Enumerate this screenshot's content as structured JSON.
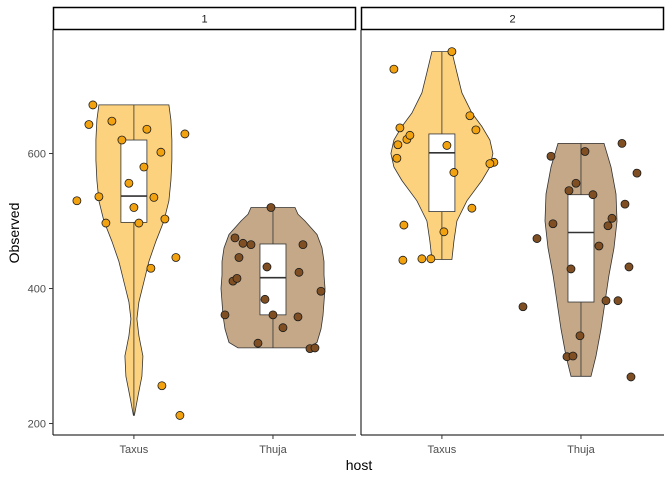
{
  "chart_data": {
    "type": "violin",
    "xlabel": "host",
    "ylabel": "Observed",
    "ylim": [
      183,
      783
    ],
    "yticks": [
      200,
      400,
      600
    ],
    "categories": [
      "Taxus",
      "Thuja"
    ],
    "colors": {
      "Taxus": {
        "fill": "#fdd27e",
        "point": "#f2a20f"
      },
      "Thuja": {
        "fill": "#c4a888",
        "point": "#7f4f23"
      }
    },
    "grid": false,
    "panels": [
      {
        "label": "1",
        "groups": [
          {
            "host": "Taxus",
            "box": {
              "q1": 498,
              "median": 537,
              "q3": 620,
              "whisker_low": 212,
              "whisker_high": 672
            },
            "violin": [
              [
                212,
                0.5
              ],
              [
                240,
                4
              ],
              [
                270,
                8
              ],
              [
                300,
                9
              ],
              [
                330,
                5
              ],
              [
                355,
                3
              ],
              [
                380,
                5
              ],
              [
                410,
                10
              ],
              [
                440,
                15
              ],
              [
                470,
                22
              ],
              [
                500,
                30
              ],
              [
                530,
                35
              ],
              [
                560,
                37
              ],
              [
                590,
                38
              ],
              [
                620,
                38
              ],
              [
                650,
                37
              ],
              [
                672,
                35
              ]
            ],
            "points": [
              [
                -57,
                530
              ],
              [
                -41,
                672
              ],
              [
                -45,
                643
              ],
              [
                -35,
                536
              ],
              [
                -28,
                497
              ],
              [
                -22,
                648
              ],
              [
                -12,
                620
              ],
              [
                -5,
                556
              ],
              [
                0,
                520
              ],
              [
                5,
                497
              ],
              [
                10,
                580
              ],
              [
                13,
                636
              ],
              [
                17,
                430
              ],
              [
                20,
                535
              ],
              [
                27,
                602
              ],
              [
                31,
                503
              ],
              [
                28,
                256
              ],
              [
                42,
                446
              ],
              [
                46,
                212
              ],
              [
                51,
                629
              ]
            ]
          },
          {
            "host": "Thuja",
            "box": {
              "q1": 361,
              "median": 416,
              "q3": 466,
              "whisker_low": 312,
              "whisker_high": 520
            },
            "violin": [
              [
                312,
                35
              ],
              [
                320,
                44
              ],
              [
                340,
                48
              ],
              [
                360,
                50
              ],
              [
                380,
                51
              ],
              [
                400,
                52
              ],
              [
                420,
                51
              ],
              [
                440,
                51
              ],
              [
                460,
                49
              ],
              [
                480,
                44
              ],
              [
                500,
                32
              ],
              [
                510,
                25
              ],
              [
                520,
                22
              ]
            ],
            "points": [
              [
                -48,
                361
              ],
              [
                -40,
                411
              ],
              [
                -38,
                475
              ],
              [
                -36,
                415
              ],
              [
                -34,
                446
              ],
              [
                -30,
                467
              ],
              [
                -22,
                465
              ],
              [
                -15,
                319
              ],
              [
                -8,
                384
              ],
              [
                -6,
                432
              ],
              [
                0,
                361
              ],
              [
                -2,
                520
              ],
              [
                10,
                342
              ],
              [
                25,
                358
              ],
              [
                26,
                424
              ],
              [
                30,
                465
              ],
              [
                37,
                311
              ],
              [
                42,
                312
              ],
              [
                48,
                396
              ]
            ]
          }
        ]
      },
      {
        "label": "2",
        "groups": [
          {
            "host": "Taxus",
            "box": {
              "q1": 514,
              "median": 601,
              "q3": 629,
              "whisker_low": 443,
              "whisker_high": 751
            },
            "violin": [
              [
                443,
                10
              ],
              [
                470,
                12
              ],
              [
                500,
                15
              ],
              [
                530,
                25
              ],
              [
                560,
                40
              ],
              [
                580,
                48
              ],
              [
                600,
                51
              ],
              [
                620,
                48
              ],
              [
                640,
                40
              ],
              [
                660,
                30
              ],
              [
                690,
                20
              ],
              [
                720,
                15
              ],
              [
                751,
                10
              ]
            ],
            "points": [
              [
                -48,
                725
              ],
              [
                -45,
                593
              ],
              [
                -44,
                613
              ],
              [
                -42,
                638
              ],
              [
                -39,
                442
              ],
              [
                -38,
                494
              ],
              [
                -35,
                621
              ],
              [
                -32,
                627
              ],
              [
                -20,
                444
              ],
              [
                -11,
                444
              ],
              [
                2,
                484
              ],
              [
                5,
                612
              ],
              [
                10,
                751
              ],
              [
                12,
                572
              ],
              [
                28,
                656
              ],
              [
                30,
                519
              ],
              [
                34,
                635
              ],
              [
                52,
                587
              ],
              [
                48,
                585
              ]
            ]
          },
          {
            "host": "Thuja",
            "box": {
              "q1": 380,
              "median": 483,
              "q3": 539,
              "whisker_low": 270,
              "whisker_high": 615
            },
            "violin": [
              [
                270,
                10
              ],
              [
                300,
                15
              ],
              [
                340,
                20
              ],
              [
                380,
                24
              ],
              [
                420,
                28
              ],
              [
                460,
                33
              ],
              [
                500,
                36
              ],
              [
                540,
                35
              ],
              [
                580,
                30
              ],
              [
                615,
                23
              ]
            ],
            "points": [
              [
                -58,
                373
              ],
              [
                -44,
                474
              ],
              [
                -30,
                596
              ],
              [
                -28,
                496
              ],
              [
                -14,
                299
              ],
              [
                -12,
                545
              ],
              [
                -10,
                429
              ],
              [
                -8,
                300
              ],
              [
                -5,
                556
              ],
              [
                -1,
                330
              ],
              [
                4,
                603
              ],
              [
                12,
                539
              ],
              [
                18,
                463
              ],
              [
                25,
                382
              ],
              [
                27,
                493
              ],
              [
                31,
                504
              ],
              [
                37,
                382
              ],
              [
                41,
                615
              ],
              [
                44,
                525
              ],
              [
                48,
                432
              ],
              [
                50,
                269
              ],
              [
                56,
                571
              ]
            ]
          }
        ]
      }
    ]
  }
}
